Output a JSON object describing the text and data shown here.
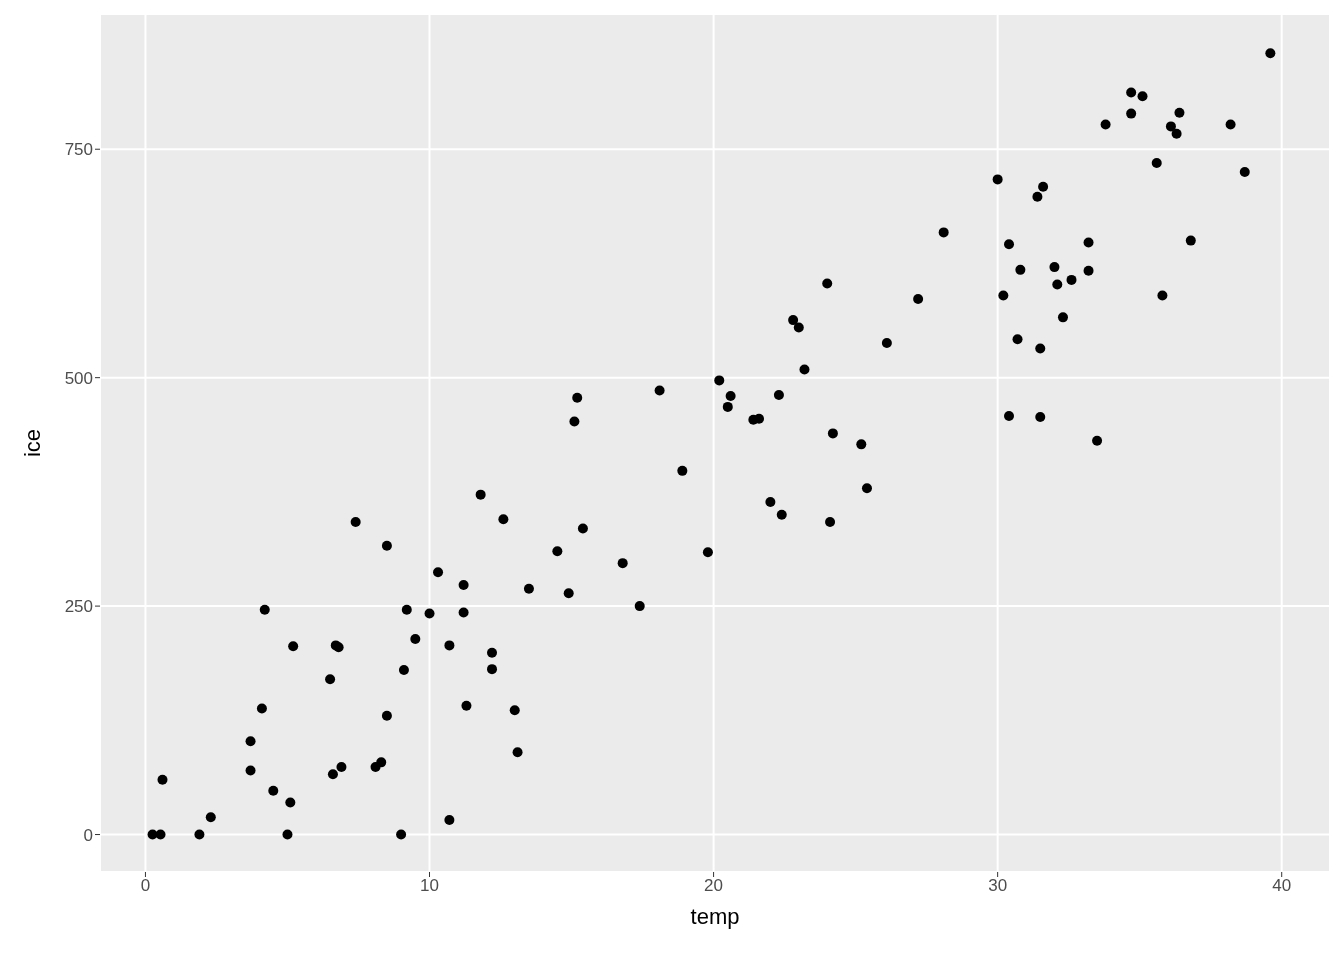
{
  "chart_data": {
    "type": "scatter",
    "xlabel": "temp",
    "ylabel": "ice",
    "x": [
      0.25,
      0.53,
      0.6,
      1.9,
      2.3,
      3.7,
      3.7,
      4.1,
      4.2,
      4.5,
      5.0,
      5.1,
      5.2,
      6.5,
      6.6,
      6.7,
      6.8,
      6.9,
      7.4,
      8.1,
      8.3,
      8.5,
      8.5,
      9.0,
      9.1,
      9.2,
      9.5,
      10.0,
      10.3,
      10.7,
      10.7,
      11.2,
      11.2,
      11.3,
      11.8,
      12.2,
      12.2,
      12.6,
      13.0,
      13.1,
      13.5,
      14.5,
      14.9,
      15.1,
      15.2,
      15.4,
      16.8,
      17.4,
      18.1,
      18.9,
      19.8,
      20.2,
      20.5,
      20.6,
      21.4,
      21.6,
      22.0,
      22.3,
      22.4,
      22.8,
      23.0,
      23.2,
      24.0,
      24.1,
      24.2,
      25.2,
      25.4,
      26.1,
      27.2,
      28.1,
      30.0,
      30.2,
      30.4,
      30.4,
      30.7,
      30.8,
      31.4,
      31.5,
      31.5,
      31.6,
      32.0,
      32.1,
      32.3,
      32.6,
      33.2,
      33.2,
      33.5,
      33.8,
      34.7,
      34.7,
      35.1,
      35.6,
      35.8,
      36.1,
      36.3,
      36.4,
      36.8,
      38.2,
      38.7,
      39.6
    ],
    "values": [
      0,
      0,
      60,
      0,
      19,
      102,
      70,
      138,
      246,
      48,
      0,
      35,
      206,
      170,
      66,
      207,
      205,
      74,
      342,
      74,
      79,
      316,
      130,
      0,
      180,
      246,
      214,
      242,
      287,
      207,
      16,
      273,
      243,
      141,
      372,
      199,
      181,
      345,
      136,
      90,
      269,
      310,
      264,
      452,
      478,
      335,
      297,
      250,
      486,
      398,
      309,
      497,
      468,
      480,
      454,
      455,
      364,
      481,
      350,
      563,
      555,
      509,
      603,
      342,
      439,
      427,
      379,
      538,
      586,
      659,
      717,
      590,
      646,
      458,
      542,
      618,
      698,
      532,
      457,
      709,
      621,
      602,
      566,
      607,
      648,
      617,
      431,
      777,
      812,
      789,
      808,
      735,
      590,
      775,
      767,
      790,
      650,
      777,
      725,
      855
    ],
    "color": "#000000",
    "marker": "circle",
    "xlim": [
      -1.6,
      41.7
    ],
    "xticks": [
      0,
      10,
      20,
      30,
      40
    ],
    "ylim": [
      -41,
      898
    ],
    "yticks": [
      0,
      250,
      500,
      750
    ],
    "grid": true
  }
}
